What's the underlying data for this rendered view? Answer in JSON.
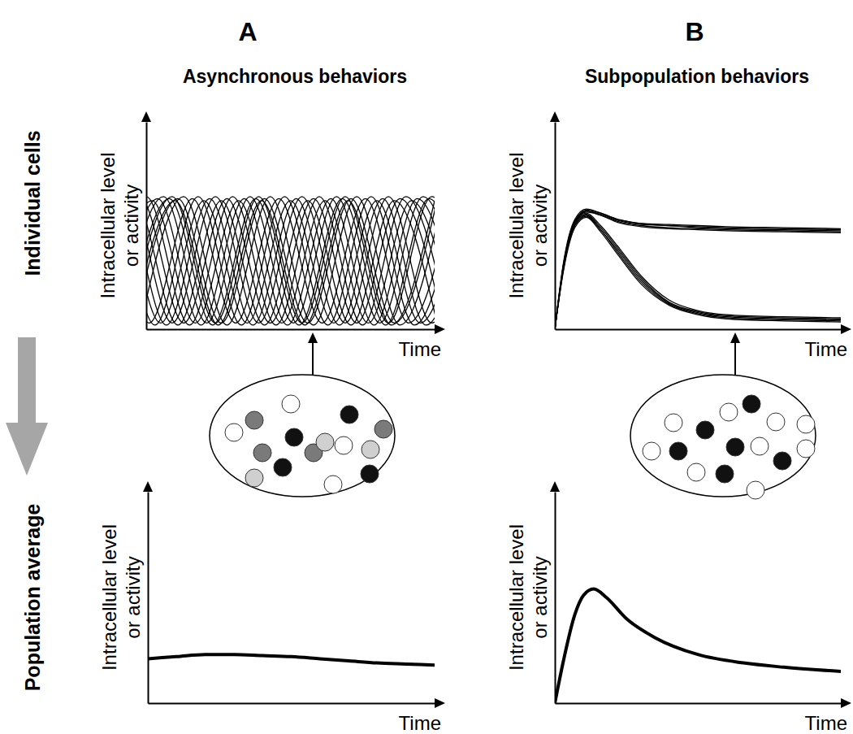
{
  "panels": [
    {
      "label": "A",
      "title": "Asynchronous behaviors"
    },
    {
      "label": "B",
      "title": "Subpopulation behaviors"
    }
  ],
  "rows": [
    "Individual cells",
    "Population average"
  ],
  "chart_data": [
    {
      "type": "line",
      "xlabel": "Time",
      "ylabel": [
        "Intracellular level",
        "or activity"
      ],
      "xlim": [
        0,
        10
      ],
      "ylim": [
        0,
        1
      ],
      "xticks": [],
      "yticks": [],
      "tick_labels": false,
      "color": "#000000",
      "series": [
        {
          "x": [
            -2.9,
            -1.4,
            0.1,
            1.6,
            3.1,
            4.6,
            6.1,
            7.6,
            9.1,
            10.6
          ],
          "values": [
            0.03,
            0.63,
            0.03,
            0.63,
            0.03,
            0.63,
            0.03,
            0.63,
            0.03,
            0.63
          ]
        },
        {
          "x": [
            -2.7,
            -1.2,
            0.3,
            1.8,
            3.3,
            4.8,
            6.3,
            7.8,
            9.3,
            10.8
          ],
          "values": [
            0.02,
            0.64,
            0.02,
            0.64,
            0.02,
            0.64,
            0.02,
            0.64,
            0.02,
            0.64
          ]
        },
        {
          "x": [
            -2.5,
            -1.0,
            0.5,
            2.0,
            3.5,
            5.0,
            6.5,
            8.0,
            9.5,
            11.0
          ],
          "values": [
            0.03,
            0.62,
            0.03,
            0.62,
            0.03,
            0.62,
            0.03,
            0.62,
            0.03,
            0.62
          ]
        },
        {
          "x": [
            -2.3,
            -0.8,
            0.7,
            2.2,
            3.7,
            5.2,
            6.7,
            8.2,
            9.7,
            11.2
          ],
          "values": [
            0.02,
            0.63,
            0.02,
            0.63,
            0.02,
            0.63,
            0.02,
            0.63,
            0.02,
            0.63
          ]
        },
        {
          "x": [
            -2.1,
            -0.6,
            0.9,
            2.4,
            3.9,
            5.4,
            6.9,
            8.4,
            9.9,
            11.4
          ],
          "values": [
            0.03,
            0.64,
            0.03,
            0.64,
            0.03,
            0.64,
            0.03,
            0.64,
            0.03,
            0.64
          ]
        },
        {
          "x": [
            -1.9,
            -0.4,
            1.1,
            2.6,
            4.1,
            5.6,
            7.1,
            8.6,
            10.1
          ],
          "values": [
            0.02,
            0.62,
            0.02,
            0.62,
            0.02,
            0.62,
            0.02,
            0.62,
            0.02
          ]
        },
        {
          "x": [
            -1.7,
            -0.2,
            1.3,
            2.8,
            4.3,
            5.8,
            7.3,
            8.8,
            10.3
          ],
          "values": [
            0.03,
            0.63,
            0.03,
            0.63,
            0.03,
            0.63,
            0.03,
            0.63,
            0.03
          ]
        },
        {
          "x": [
            -1.5,
            0.0,
            1.5,
            3.0,
            4.5,
            6.0,
            7.5,
            9.0,
            10.5
          ],
          "values": [
            0.02,
            0.64,
            0.02,
            0.64,
            0.02,
            0.64,
            0.02,
            0.64,
            0.02
          ]
        },
        {
          "x": [
            -1.3,
            0.2,
            1.7,
            3.2,
            4.7,
            6.2,
            7.7,
            9.2,
            10.7
          ],
          "values": [
            0.03,
            0.62,
            0.03,
            0.62,
            0.03,
            0.62,
            0.03,
            0.62,
            0.03
          ]
        },
        {
          "x": [
            -1.1,
            0.4,
            1.9,
            3.4,
            4.9,
            6.4,
            7.9,
            9.4,
            10.9
          ],
          "values": [
            0.02,
            0.63,
            0.02,
            0.63,
            0.02,
            0.63,
            0.02,
            0.63,
            0.02
          ]
        },
        {
          "x": [
            -0.9,
            0.6,
            2.1,
            3.6,
            5.1,
            6.6,
            8.1,
            9.6,
            11.1
          ],
          "values": [
            0.03,
            0.64,
            0.03,
            0.64,
            0.03,
            0.64,
            0.03,
            0.64,
            0.03
          ]
        },
        {
          "x": [
            -0.7,
            0.8,
            2.3,
            3.8,
            5.3,
            6.8,
            8.3,
            9.8,
            11.3
          ],
          "values": [
            0.02,
            0.63,
            0.02,
            0.63,
            0.02,
            0.63,
            0.02,
            0.63,
            0.02
          ]
        },
        {
          "x": [
            -0.6,
            0.9,
            2.4,
            3.9,
            5.4,
            6.9,
            8.4,
            9.9,
            11.4
          ],
          "values": [
            0.03,
            0.64,
            0.03,
            0.64,
            0.03,
            0.64,
            0.03,
            0.64,
            0.03
          ]
        },
        {
          "x": [
            -0.5,
            1.0,
            2.5,
            4.0,
            5.5,
            7.0,
            8.5,
            10.0
          ],
          "values": [
            0.02,
            0.62,
            0.02,
            0.62,
            0.02,
            0.62,
            0.02,
            0.62
          ]
        },
        {
          "x": [
            -0.4,
            1.1,
            2.6,
            4.1,
            5.6,
            7.1,
            8.6,
            10.1
          ],
          "values": [
            0.03,
            0.63,
            0.03,
            0.63,
            0.03,
            0.63,
            0.03,
            0.63
          ]
        },
        {
          "x": [
            -0.2,
            1.3,
            2.8,
            4.3,
            5.8,
            7.3,
            8.8,
            10.3
          ],
          "values": [
            0.02,
            0.64,
            0.02,
            0.64,
            0.02,
            0.64,
            0.02,
            0.64
          ]
        }
      ]
    },
    {
      "type": "line",
      "xlabel": "Time",
      "ylabel": [
        "Intracellular level",
        "or activity"
      ],
      "xlim": [
        0,
        10
      ],
      "ylim": [
        0,
        1
      ],
      "xticks": [],
      "yticks": [],
      "tick_labels": false,
      "color": "#000000",
      "x": [
        0,
        0.3,
        0.7,
        1.1,
        1.6,
        2.2,
        3,
        4,
        5,
        6,
        8,
        10
      ],
      "series": [
        {
          "values": [
            0,
            0.32,
            0.53,
            0.58,
            0.56,
            0.53,
            0.51,
            0.505,
            0.5,
            0.495,
            0.49,
            0.485
          ]
        },
        {
          "values": [
            0,
            0.3,
            0.52,
            0.57,
            0.555,
            0.525,
            0.505,
            0.5,
            0.495,
            0.49,
            0.485,
            0.48
          ]
        },
        {
          "values": [
            0,
            0.31,
            0.52,
            0.575,
            0.56,
            0.53,
            0.51,
            0.5,
            0.49,
            0.485,
            0.48,
            0.475
          ]
        },
        {
          "values": [
            0,
            0.29,
            0.51,
            0.565,
            0.55,
            0.52,
            0.5,
            0.49,
            0.485,
            0.48,
            0.475,
            0.47
          ]
        },
        {
          "values": [
            0,
            0.3,
            0.51,
            0.57,
            0.55,
            0.515,
            0.495,
            0.485,
            0.48,
            0.475,
            0.47,
            0.465
          ]
        },
        {
          "values": [
            0,
            0.31,
            0.52,
            0.56,
            0.5,
            0.4,
            0.26,
            0.14,
            0.09,
            0.07,
            0.06,
            0.055
          ]
        },
        {
          "values": [
            0,
            0.3,
            0.51,
            0.555,
            0.49,
            0.39,
            0.25,
            0.13,
            0.085,
            0.065,
            0.055,
            0.05
          ]
        },
        {
          "values": [
            0,
            0.29,
            0.5,
            0.55,
            0.48,
            0.38,
            0.24,
            0.125,
            0.08,
            0.06,
            0.05,
            0.045
          ]
        },
        {
          "values": [
            0,
            0.3,
            0.5,
            0.545,
            0.48,
            0.37,
            0.23,
            0.12,
            0.075,
            0.055,
            0.045,
            0.04
          ]
        },
        {
          "values": [
            0,
            0.28,
            0.49,
            0.54,
            0.47,
            0.36,
            0.22,
            0.115,
            0.07,
            0.05,
            0.04,
            0.035
          ]
        }
      ]
    },
    {
      "type": "line",
      "xlabel": "Time",
      "ylabel": [
        "Intracellular level",
        "or activity"
      ],
      "xlim": [
        0,
        10
      ],
      "ylim": [
        0,
        1
      ],
      "xticks": [],
      "yticks": [],
      "tick_labels": false,
      "color": "#000000",
      "x": [
        0,
        1,
        2,
        3,
        4,
        5,
        6,
        7,
        8,
        9,
        10
      ],
      "series": [
        {
          "values": [
            0.21,
            0.22,
            0.23,
            0.23,
            0.225,
            0.22,
            0.21,
            0.2,
            0.19,
            0.185,
            0.18
          ]
        }
      ]
    },
    {
      "type": "line",
      "xlabel": "Time",
      "ylabel": [
        "Intracellular level",
        "or activity"
      ],
      "xlim": [
        0,
        10
      ],
      "ylim": [
        0,
        1
      ],
      "xticks": [],
      "yticks": [],
      "tick_labels": false,
      "color": "#000000",
      "x": [
        0,
        0.3,
        0.7,
        1.0,
        1.36,
        1.8,
        2.5,
        3.5,
        5,
        6.6,
        8,
        10
      ],
      "series": [
        {
          "values": [
            0,
            0.2,
            0.42,
            0.51,
            0.54,
            0.5,
            0.4,
            0.31,
            0.23,
            0.19,
            0.17,
            0.15
          ]
        }
      ]
    }
  ]
}
